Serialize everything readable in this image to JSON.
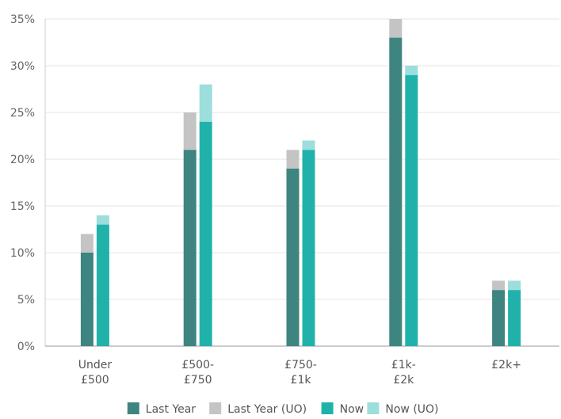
{
  "chart_data": {
    "type": "bar",
    "categories": [
      [
        "Under",
        "£500"
      ],
      [
        "£500-",
        "£750"
      ],
      [
        "£750-",
        "£1k"
      ],
      [
        "£1k-",
        "£2k"
      ],
      [
        "£2k+"
      ]
    ],
    "ylim": [
      0,
      35
    ],
    "ytick_step": 5,
    "ytick_suffix": "%",
    "grid": true,
    "legend_position": "bottom-center",
    "groups": [
      {
        "name": "Last Year",
        "base": [
          10,
          21,
          19,
          33,
          6
        ],
        "total": [
          12,
          25,
          21,
          35,
          7
        ]
      },
      {
        "name": "Now",
        "base": [
          13,
          24,
          21,
          29,
          6
        ],
        "total": [
          14,
          28,
          22,
          30,
          7
        ]
      }
    ],
    "series": [
      {
        "name": "Last Year",
        "color": "#3e8480"
      },
      {
        "name": "Last Year (UO)",
        "color": "#c4c4c4"
      },
      {
        "name": "Now",
        "color": "#20b2aa"
      },
      {
        "name": "Now (UO)",
        "color": "#9cdedb"
      }
    ]
  }
}
